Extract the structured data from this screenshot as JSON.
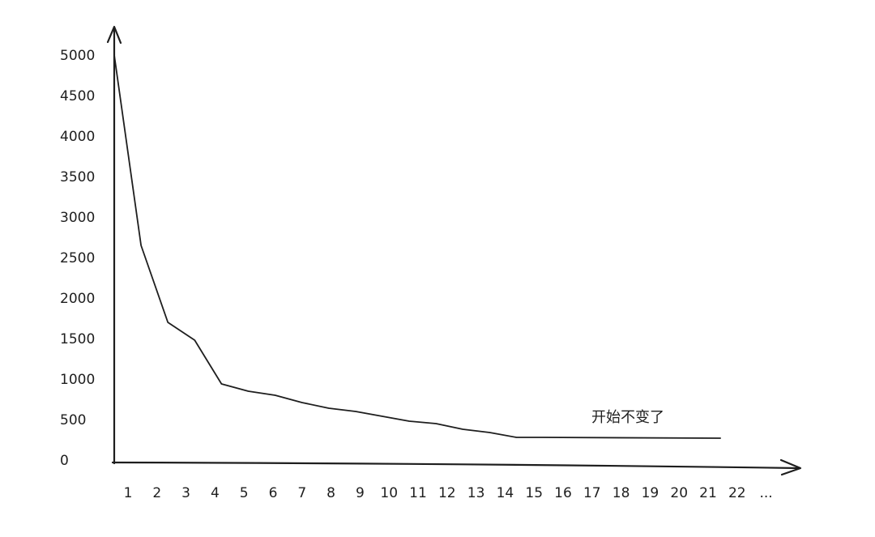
{
  "chart_data": {
    "type": "line",
    "title": "",
    "xlabel": "",
    "ylabel": "",
    "x_ticks": [
      "1",
      "2",
      "3",
      "4",
      "5",
      "6",
      "7",
      "8",
      "9",
      "10",
      "11",
      "12",
      "13",
      "14",
      "15",
      "16",
      "17",
      "18",
      "19",
      "20",
      "21",
      "22",
      "..."
    ],
    "y_ticks": [
      "0",
      "500",
      "1000",
      "1500",
      "2000",
      "2500",
      "3000",
      "3500",
      "4000",
      "4500",
      "5000"
    ],
    "ylim": [
      0,
      5000
    ],
    "grid": false,
    "legend": "none",
    "x": [
      0,
      1,
      2,
      3,
      4,
      5,
      6,
      7,
      8,
      9,
      10,
      11,
      12,
      13,
      14,
      15,
      16,
      22.6
    ],
    "values": [
      5000,
      2650,
      1700,
      1480,
      940,
      850,
      800,
      710,
      640,
      600,
      540,
      480,
      450,
      380,
      340,
      280,
      280,
      270
    ],
    "annotation": "开始不变了",
    "colors": {
      "line": "#1e1e1e",
      "axis": "#1e1e1e"
    }
  }
}
